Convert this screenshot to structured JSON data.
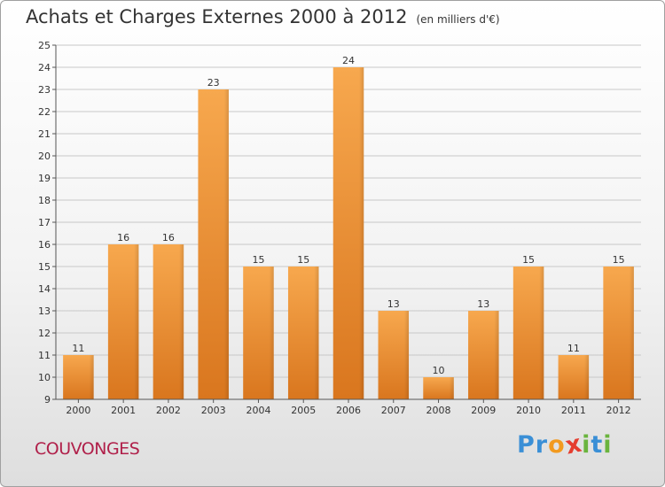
{
  "header": {
    "title": "Achats et Charges Externes 2000 à 2012",
    "subtitle": "(en milliers d'€)"
  },
  "footer": {
    "commune": "COUVONGES",
    "logo_letters": [
      {
        "char": "P",
        "color": "#3a8fd6"
      },
      {
        "char": "r",
        "color": "#3a8fd6"
      },
      {
        "char": "o",
        "color": "#f29a1f"
      },
      {
        "char": "x",
        "color": "#e53d2f"
      },
      {
        "char": "i",
        "color": "#6ab43e"
      },
      {
        "char": "t",
        "color": "#3a8fd6"
      },
      {
        "char": "i",
        "color": "#6ab43e"
      }
    ]
  },
  "colors": {
    "bar_light": "#f7a84e",
    "bar_dark": "#d9761e",
    "grid": "#c8c8c8",
    "axis": "#555555"
  },
  "chart_data": {
    "type": "bar",
    "categories": [
      "2000",
      "2001",
      "2002",
      "2003",
      "2004",
      "2005",
      "2006",
      "2007",
      "2008",
      "2009",
      "2010",
      "2011",
      "2012"
    ],
    "values": [
      11,
      16,
      16,
      23,
      15,
      15,
      24,
      13,
      10,
      13,
      15,
      11,
      15
    ],
    "ylim": [
      9,
      25
    ],
    "yticks": [
      9,
      10,
      11,
      12,
      13,
      14,
      15,
      16,
      17,
      18,
      19,
      20,
      21,
      22,
      23,
      24,
      25
    ],
    "grid": true,
    "title": "Achats et Charges Externes 2000 à 2012",
    "ylabel": "",
    "xlabel": ""
  }
}
